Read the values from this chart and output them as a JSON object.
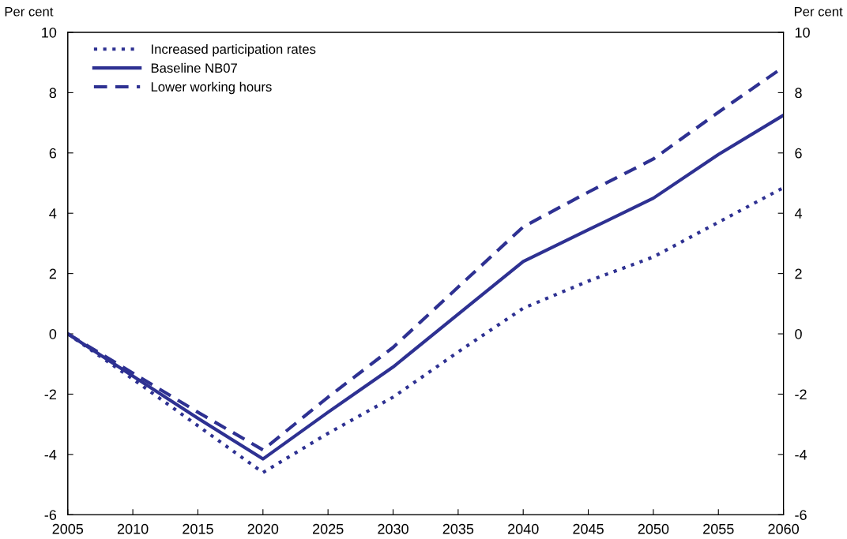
{
  "chart_data": {
    "type": "line",
    "x": [
      2005,
      2010,
      2015,
      2020,
      2025,
      2030,
      2035,
      2040,
      2045,
      2050,
      2055,
      2060
    ],
    "series": [
      {
        "name": "Increased participation rates",
        "color": "#2e3192",
        "line_style": "dotted",
        "values": [
          0,
          -1.5,
          -3.05,
          -4.6,
          -3.3,
          -2.1,
          -0.6,
          0.85,
          1.75,
          2.55,
          3.7,
          4.85
        ]
      },
      {
        "name": "Baseline NB07",
        "color": "#2e3192",
        "line_style": "solid",
        "values": [
          0,
          -1.4,
          -2.8,
          -4.15,
          -2.6,
          -1.1,
          0.65,
          2.4,
          3.45,
          4.5,
          5.95,
          7.25
        ]
      },
      {
        "name": "Lower working hours",
        "color": "#2e3192",
        "line_style": "dashed",
        "values": [
          0,
          -1.3,
          -2.6,
          -3.85,
          -2.1,
          -0.45,
          1.55,
          3.55,
          4.7,
          5.8,
          7.35,
          8.85
        ]
      }
    ],
    "ylabel": "Per cent",
    "y2label": "Per cent",
    "xlim": [
      2005,
      2060
    ],
    "xticks": [
      2005,
      2010,
      2015,
      2020,
      2025,
      2030,
      2035,
      2040,
      2045,
      2050,
      2055,
      2060
    ],
    "ylim": [
      -6,
      10
    ],
    "yticks": [
      -6,
      -4,
      -2,
      0,
      2,
      4,
      6,
      8,
      10
    ],
    "y2lim": [
      -6,
      10
    ],
    "y2ticks": [
      -6,
      -4,
      -2,
      0,
      2,
      4,
      6,
      8,
      10
    ],
    "grid": false,
    "legend": "top left"
  }
}
